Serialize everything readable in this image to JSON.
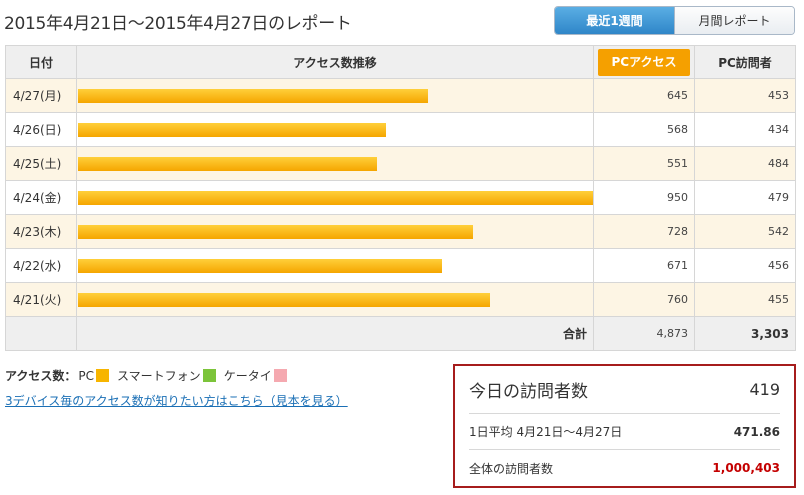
{
  "report": {
    "title": "2015年4月21日～2015年4月27日のレポート"
  },
  "period_tabs": {
    "week": "最近1週間",
    "month": "月間レポート"
  },
  "table": {
    "headers": {
      "date": "日付",
      "trend": "アクセス数推移",
      "pc_access": "PCアクセス",
      "pc_visitors": "PC訪問者"
    },
    "rows": [
      {
        "date": "4/27(月)",
        "pc_access": 645,
        "pc_visitors": 453
      },
      {
        "date": "4/26(日)",
        "pc_access": 568,
        "pc_visitors": 434
      },
      {
        "date": "4/25(土)",
        "pc_access": 551,
        "pc_visitors": 484
      },
      {
        "date": "4/24(金)",
        "pc_access": 950,
        "pc_visitors": 479
      },
      {
        "date": "4/23(木)",
        "pc_access": 728,
        "pc_visitors": 542
      },
      {
        "date": "4/22(水)",
        "pc_access": 671,
        "pc_visitors": 456
      },
      {
        "date": "4/21(火)",
        "pc_access": 760,
        "pc_visitors": 455
      }
    ],
    "bar_max": 950,
    "total": {
      "label": "合計",
      "pc_access": "4,873",
      "pc_visitors": "3,303"
    }
  },
  "legend": {
    "title": "アクセス数：",
    "items": [
      {
        "label": "PC",
        "color": "#f7b500"
      },
      {
        "label": "スマートフォン",
        "color": "#7cc43a"
      },
      {
        "label": "ケータイ",
        "color": "#f5a9b0"
      }
    ]
  },
  "device_link": "3デバイス毎のアクセス数が知りたい方はこちら（見本を見る）",
  "visitors": {
    "today_label": "今日の訪問者数",
    "today_value": "419",
    "avg_label": "1日平均 4月21日～4月27日",
    "avg_value": "471.86",
    "all_label": "全体の訪問者数",
    "all_value": "1,000,403"
  },
  "colors": {
    "accent": "#f5a000",
    "tab_active": "#2f86c8",
    "box_border": "#a61c1c",
    "all_value": "#c40000"
  }
}
